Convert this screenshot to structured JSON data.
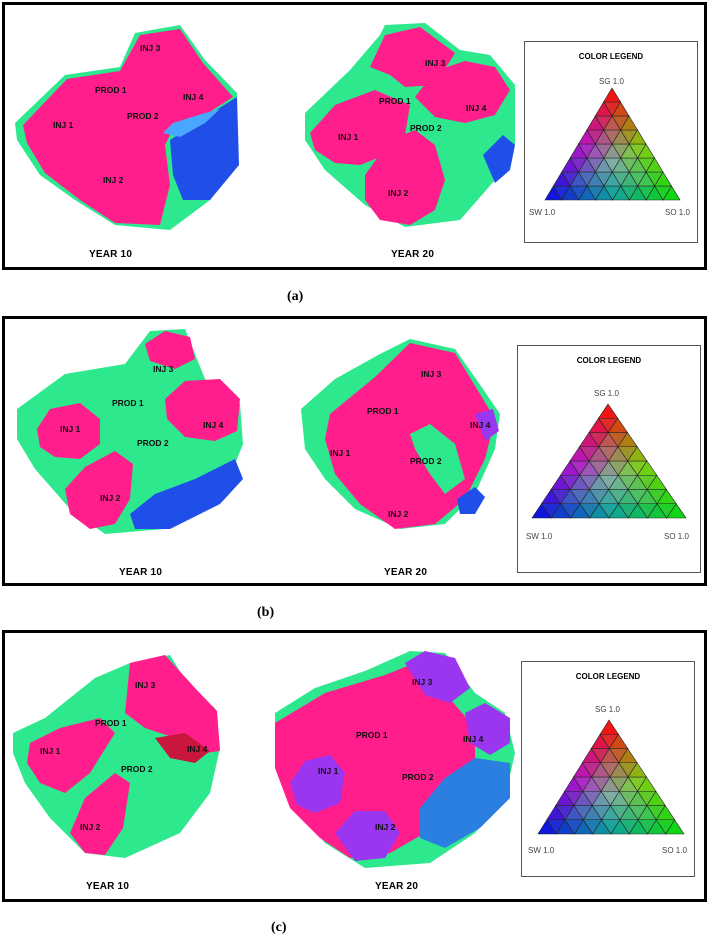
{
  "panels": [
    {
      "id": "a",
      "caption": "(a)",
      "legend": {
        "title": "COLOR LEGEND",
        "top": "SG 1.0",
        "left": "SW 1.0",
        "right": "SO 1.0"
      },
      "maps": [
        {
          "year": "YEAR 10",
          "labels": {
            "inj1": "INJ 1",
            "inj2": "INJ 2",
            "inj3": "INJ 3",
            "inj4": "INJ 4",
            "prod1": "PROD 1",
            "prod2": "PROD 2"
          }
        },
        {
          "year": "YEAR 20",
          "labels": {
            "inj1": "INJ 1",
            "inj2": "INJ 2",
            "inj3": "INJ 3",
            "inj4": "INJ 4",
            "prod1": "PROD 1",
            "prod2": "PROD 2"
          }
        }
      ]
    },
    {
      "id": "b",
      "caption": "(b)",
      "legend": {
        "title": "COLOR LEGEND",
        "top": "SG 1.0",
        "left": "SW 1.0",
        "right": "SO 1.0"
      },
      "maps": [
        {
          "year": "YEAR 10",
          "labels": {
            "inj1": "INJ 1",
            "inj2": "INJ 2",
            "inj3": "INJ 3",
            "inj4": "INJ 4",
            "prod1": "PROD 1",
            "prod2": "PROD 2"
          }
        },
        {
          "year": "YEAR 20",
          "labels": {
            "inj1": "INJ 1",
            "inj2": "INJ 2",
            "inj3": "INJ 3",
            "inj4": "INJ 4",
            "prod1": "PROD 1",
            "prod2": "PROD 2"
          }
        }
      ]
    },
    {
      "id": "c",
      "caption": "(c)",
      "legend": {
        "title": "COLOR LEGEND",
        "top": "SG 1.0",
        "left": "SW 1.0",
        "right": "SO 1.0"
      },
      "maps": [
        {
          "year": "YEAR 10",
          "labels": {
            "inj1": "INJ 1",
            "inj2": "INJ 2",
            "inj3": "INJ 3",
            "inj4": "INJ 4",
            "prod1": "PROD 1",
            "prod2": "PROD 2"
          }
        },
        {
          "year": "YEAR 20",
          "labels": {
            "inj1": "INJ 1",
            "inj2": "INJ 2",
            "inj3": "INJ 3",
            "inj4": "INJ 4",
            "prod1": "PROD 1",
            "prod2": "PROD 2"
          }
        }
      ]
    }
  ],
  "colors": {
    "gas": "#ff1e8c",
    "oil": "#2ee88e",
    "water": "#1f4fe8",
    "mixed": "#9a35f0"
  }
}
